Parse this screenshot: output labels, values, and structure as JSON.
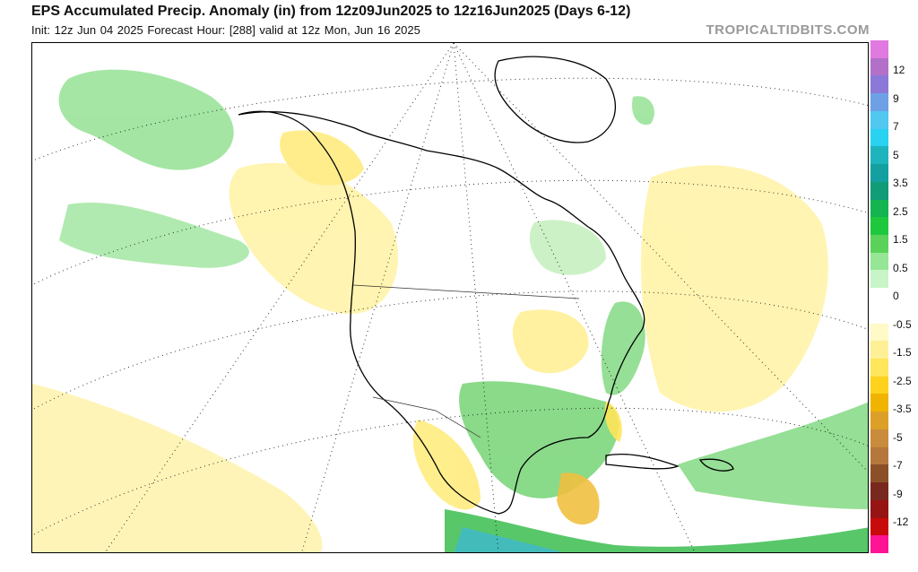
{
  "header": {
    "title": "EPS Accumulated Precip. Anomaly (in) from 12z09Jun2025 to 12z16Jun2025 (Days 6-12)",
    "subtitle": "Init: 12z Jun 04 2025   Forecast Hour: [288]   valid at 12z Mon, Jun 16 2025",
    "credit": "TROPICALTIDBITS.COM"
  },
  "colorbar": {
    "colors": [
      "#e07ae0",
      "#b270c8",
      "#8c78d8",
      "#6ea0e6",
      "#50c8f0",
      "#28d2f0",
      "#1eb4be",
      "#14a0a0",
      "#119c78",
      "#14b450",
      "#1ec83c",
      "#5ad25a",
      "#96e696",
      "#c8f5c8",
      "#ffffff",
      "#ffffff",
      "#fffac8",
      "#fff096",
      "#ffe65a",
      "#ffd21e",
      "#f0b400",
      "#dca028",
      "#c88c3c",
      "#b4783c",
      "#8c5028",
      "#78281e",
      "#961414",
      "#c80a0a",
      "#ff1493"
    ],
    "labels": [
      "12",
      "9",
      "7",
      "5",
      "3.5",
      "2.5",
      "1.5",
      "0.5",
      "0",
      "-0.5",
      "-1.5",
      "-2.5",
      "-3.5",
      "-5",
      "-7",
      "-9",
      "-12"
    ]
  }
}
